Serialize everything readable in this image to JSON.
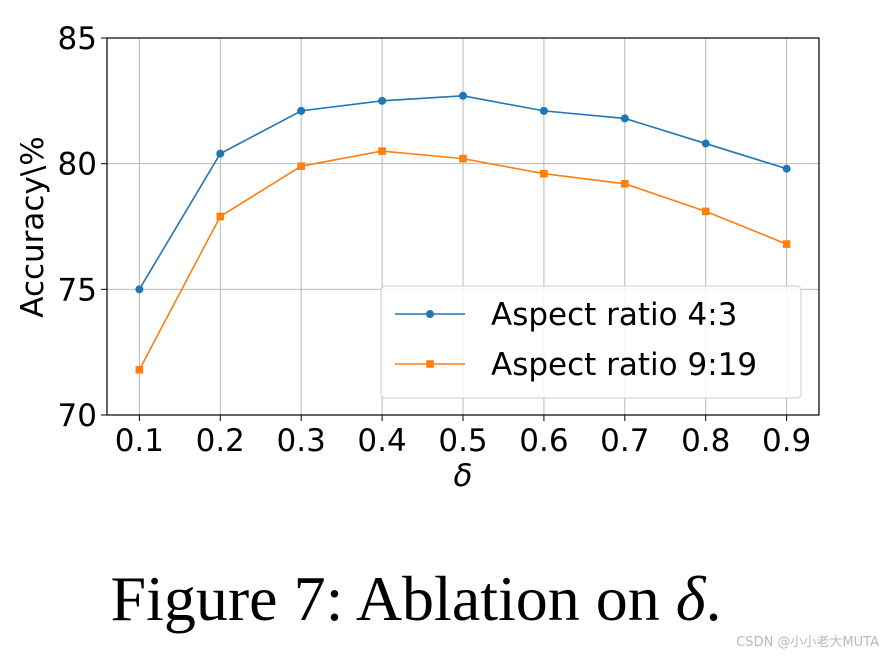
{
  "chart_data": {
    "type": "line",
    "x": [
      0.1,
      0.2,
      0.3,
      0.4,
      0.5,
      0.6,
      0.7,
      0.8,
      0.9
    ],
    "x_tick_labels": [
      "0.1",
      "0.2",
      "0.3",
      "0.4",
      "0.5",
      "0.6",
      "0.7",
      "0.8",
      "0.9"
    ],
    "y_ticks": [
      70,
      75,
      80,
      85
    ],
    "xlabel": "δ",
    "ylabel": "Accuracy\\%",
    "xlim": [
      0.06,
      0.94
    ],
    "ylim": [
      70,
      85
    ],
    "grid": true,
    "legend_position": "lower-right",
    "series": [
      {
        "name": "Aspect ratio 4:3",
        "color": "#1f77b4",
        "marker": "circle",
        "values": [
          75.0,
          80.4,
          82.1,
          82.5,
          82.7,
          82.1,
          81.8,
          80.8,
          79.8
        ]
      },
      {
        "name": "Aspect ratio 9:19",
        "color": "#ff7f0e",
        "marker": "square",
        "values": [
          71.8,
          77.9,
          79.9,
          80.5,
          80.2,
          79.6,
          79.2,
          78.1,
          76.8
        ]
      }
    ]
  },
  "caption": {
    "prefix": "Figure 7: Ablation on ",
    "symbol": "δ",
    "suffix": "."
  },
  "watermark": "CSDN @小小老大MUTA"
}
